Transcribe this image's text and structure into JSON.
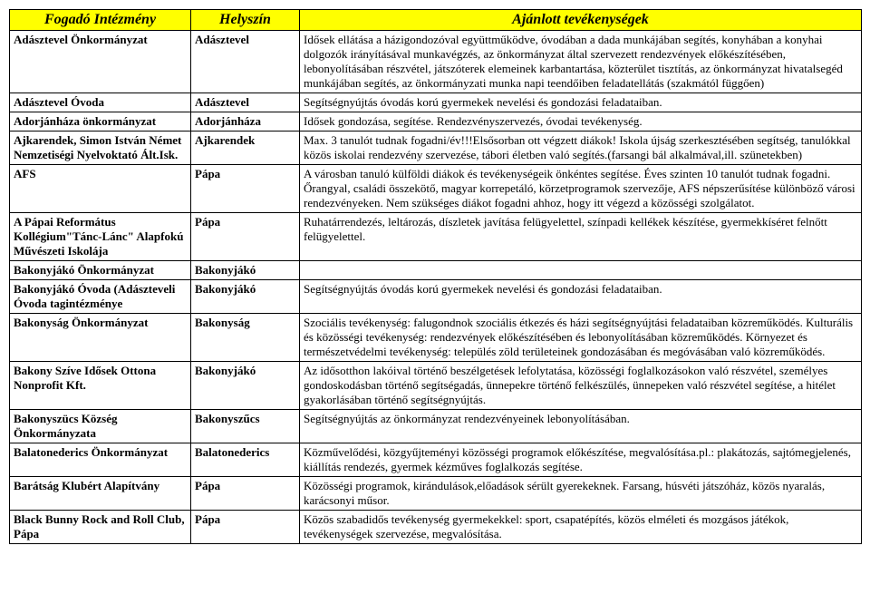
{
  "table": {
    "headers": [
      "Fogadó Intézmény",
      "Helyszín",
      "Ajánlott tevékenységek"
    ],
    "rows": [
      {
        "inst": "Adásztevel Önkormányzat",
        "loc": "Adásztevel",
        "act": "Idősek ellátása a házigondozóval együttműködve, óvodában a dada munkájában segítés, konyhában a konyhai dolgozók irányításával munkavégzés, az önkormányzat által szervezett rendezvények előkészítésében, lebonyolításában részvétel, játszóterek elemeinek karbantartása, közterület tisztítás, az önkormányzat hivatalsegéd munkájában segítés, az önkormányzati munka napi teendőiben feladatellátás (szakmától függően)"
      },
      {
        "inst": "Adásztevel Óvoda",
        "loc": "Adásztevel",
        "act": "Segítségnyújtás óvodás korú gyermekek nevelési és gondozási feladataiban."
      },
      {
        "inst": "Adorjánháza önkormányzat",
        "loc": "Adorjánháza",
        "act": "Idősek gondozása, segítése. Rendezvényszervezés, óvodai tevékenység."
      },
      {
        "inst": "Ajkarendek, Simon István Német Nemzetiségi Nyelvoktató Ált.Isk.",
        "loc": "Ajkarendek",
        "act": "Max. 3 tanulót tudnak fogadni/év!!!Elsősorban ott végzett diákok! Iskola újság szerkesztésében segítség, tanulókkal közös iskolai rendezvény szervezése, tábori életben való segítés.(farsangi bál alkalmával,ill. szünetekben)"
      },
      {
        "inst": "AFS",
        "loc": "Pápa",
        "act": "A városban tanuló külföldi diákok és tevékenységeik önkéntes segítése. Éves szinten 10 tanulót tudnak fogadni. Őrangyal, családi összekötő, magyar korrepetáló, körzetprogramok szervezője, AFS népszerűsítése különböző városi rendezvényeken. Nem szükséges diákot fogadni ahhoz, hogy itt végezd a közösségi szolgálatot."
      },
      {
        "inst": "A Pápai Református Kollégium\"Tánc-Lánc\" Alapfokú Művészeti Iskolája",
        "loc": "Pápa",
        "act": "Ruhatárrendezés, leltározás, díszletek javítása felügyelettel, színpadi kellékek készítése, gyermekkíséret felnőtt felügyelettel."
      },
      {
        "inst": "Bakonyjákó Önkormányzat",
        "loc": "Bakonyjákó",
        "act": ""
      },
      {
        "inst": "Bakonyjákó Óvoda (Adászteveli Óvoda tagintézménye",
        "loc": "Bakonyjákó",
        "act": "Segítségnyújtás óvodás korú gyermekek nevelési és gondozási feladataiban."
      },
      {
        "inst": "Bakonyság Önkormányzat",
        "loc": "Bakonyság",
        "act": "Szociális tevékenység: falugondnok szociális étkezés és házi segítségnyújtási feladataiban közreműködés. Kulturális és közösségi tevékenység: rendezvények előkészítésében és lebonyolításában közreműködés. Környezet és természetvédelmi tevékenység: település zöld területeinek gondozásában és megóvásában való közreműködés."
      },
      {
        "inst": "Bakony Szíve Idősek Ottona Nonprofit Kft.",
        "loc": "Bakonyjákó",
        "act": "Az idősotthon lakóival történő beszélgetések lefolytatása, közösségi foglalkozásokon való részvétel, személyes gondoskodásban történő segítségadás, ünnepekre történő felkészülés, ünnepeken való részvétel segítése, a hitélet gyakorlásában történő segítségnyújtás."
      },
      {
        "inst": "Bakonyszücs Község Önkormányzata",
        "loc": "Bakonyszűcs",
        "act": "Segítségnyújtás az önkormányzat rendezvényeinek lebonyolításában."
      },
      {
        "inst": "Balatonederics Önkormányzat",
        "loc": "Balatonederics",
        "act": "Közművelődési, közgyűjteményi közösségi programok előkészítése, megvalósítása.pl.: plakátozás, sajtómegjelenés, kiállítás rendezés, gyermek kézműves foglalkozás segítése."
      },
      {
        "inst": "Barátság Klubért Alapítvány",
        "loc": "Pápa",
        "act": "Közösségi programok, kirándulások,előadások sérült gyerekeknek. Farsang, húsvéti játszóház, közös nyaralás, karácsonyi műsor."
      },
      {
        "inst": "Black Bunny Rock and Roll Club, Pápa",
        "loc": "Pápa",
        "act": "Közös szabadidős tevékenység gyermekekkel: sport, csapatépítés, közös elméleti és mozgásos játékok, tevékenységek szervezése, megvalósítása."
      }
    ]
  }
}
